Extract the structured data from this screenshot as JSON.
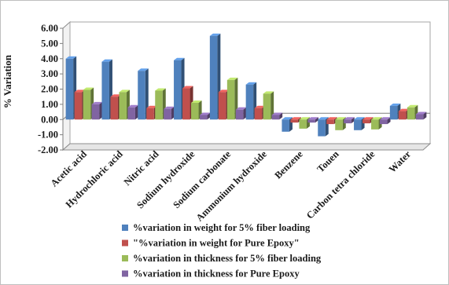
{
  "chart_data": {
    "type": "bar",
    "title": "",
    "xlabel": "",
    "ylabel": "% Variation",
    "ylim": [
      -2.0,
      6.0
    ],
    "yticks": [
      "-2.00",
      "-1.00",
      "0.00",
      "1.00",
      "2.00",
      "3.00",
      "4.00",
      "5.00",
      "6.00"
    ],
    "grid": false,
    "style": "3d-clustered-column",
    "legend_position": "bottom",
    "categories": [
      "Acetic acid",
      "Hydrochloric acid",
      "Nitric acid",
      "Sodium hydroxide",
      "Sodium carbonate",
      "Ammonium hydroxide",
      "Benzene",
      "Touen",
      "Carbon tetra chloride",
      "Water"
    ],
    "series": [
      {
        "name": "%variation in weight for 5% fiber loading",
        "color": "#4f81bd",
        "values": [
          4.0,
          3.8,
          3.2,
          3.9,
          5.5,
          2.3,
          -0.8,
          -1.1,
          -0.7,
          0.9
        ]
      },
      {
        "name": "\"%variation in weight for Pure Epoxy\"",
        "color": "#c0504d",
        "values": [
          1.8,
          1.5,
          0.75,
          2.05,
          1.8,
          0.75,
          -0.2,
          -0.3,
          -0.25,
          0.55
        ]
      },
      {
        "name": "%variation in thickness for 5% fiber loading",
        "color": "#9bbb59",
        "values": [
          1.95,
          1.8,
          1.9,
          1.1,
          2.6,
          1.7,
          -0.6,
          -0.7,
          -0.65,
          0.8
        ]
      },
      {
        "name": "%variation in thickness for Pure Epoxy",
        "color": "#8064a2",
        "values": [
          1.0,
          0.8,
          0.7,
          0.3,
          0.65,
          0.3,
          -0.2,
          -0.25,
          -0.3,
          0.35
        ]
      }
    ]
  }
}
